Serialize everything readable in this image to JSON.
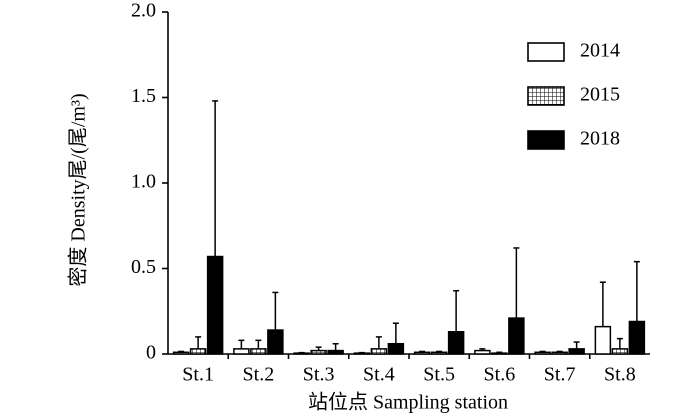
{
  "chart_data": {
    "type": "bar",
    "x_label": "站位点 Sampling station",
    "y_label": "密度 Density尾/(尾/m³)",
    "categories": [
      "St.1",
      "St.2",
      "St.3",
      "St.4",
      "St.5",
      "St.6",
      "St.7",
      "St.8"
    ],
    "series": [
      {
        "name": "2014",
        "color": "#ffffff",
        "hatch": false,
        "values": [
          0.01,
          0.03,
          0.005,
          0.005,
          0.01,
          0.02,
          0.01,
          0.16
        ],
        "errors": [
          0.005,
          0.05,
          0.003,
          0.003,
          0.005,
          0.01,
          0.005,
          0.26
        ]
      },
      {
        "name": "2015",
        "color": "#ffffff",
        "hatch": true,
        "values": [
          0.03,
          0.03,
          0.02,
          0.03,
          0.01,
          0.005,
          0.01,
          0.03
        ],
        "errors": [
          0.07,
          0.05,
          0.02,
          0.07,
          0.005,
          0.005,
          0.005,
          0.06
        ]
      },
      {
        "name": "2018",
        "color": "#000000",
        "hatch": false,
        "values": [
          0.57,
          0.14,
          0.02,
          0.06,
          0.13,
          0.21,
          0.03,
          0.19
        ],
        "errors": [
          0.91,
          0.22,
          0.04,
          0.12,
          0.24,
          0.41,
          0.04,
          0.35
        ]
      }
    ],
    "ylim": [
      0,
      2
    ],
    "yticks": [
      0,
      0.5,
      {
        "value": 1,
        "label": "1.0"
      },
      1.5,
      {
        "value": 2,
        "label": "2.0"
      }
    ],
    "grid": false,
    "legend": "upper right"
  }
}
